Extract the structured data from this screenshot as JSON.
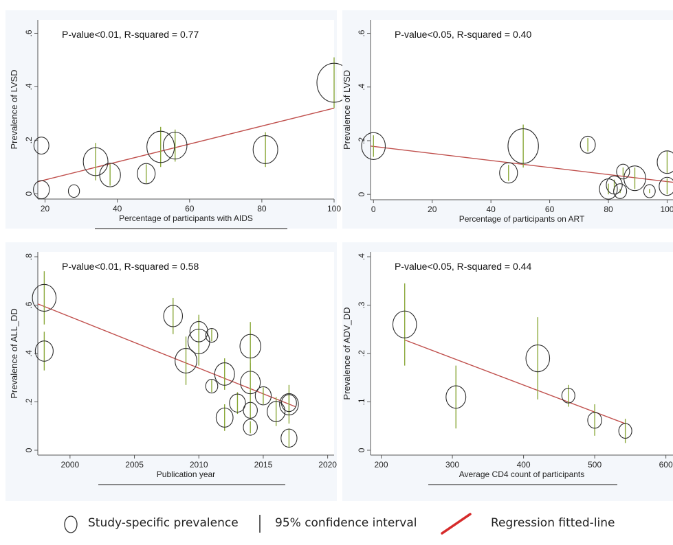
{
  "colors": {
    "background": "#ffffff",
    "panel_bg": "#f4f7fb",
    "axis": "#555555",
    "marker": "#2b2b2b",
    "ci": "#8aa83a",
    "fit": "#c0504d",
    "legend_fit": "#d62b2b"
  },
  "legend": {
    "items": [
      {
        "label": "Study-specific prevalence",
        "icon": "circle-marker-icon"
      },
      {
        "label": "95% confidence interval",
        "icon": "vertical-bar-icon"
      },
      {
        "label": "Regression fitted-line",
        "icon": "red-line-icon"
      }
    ]
  },
  "chart_data": [
    {
      "type": "scatter",
      "annotation": "P-value<0.01, R-squared = 0.77",
      "xlabel": "Percentage of participants with AIDS",
      "ylabel": "Prevalence of LVSD",
      "xlim": [
        18,
        100
      ],
      "ylim": [
        -0.02,
        0.65
      ],
      "xticks": [
        20,
        40,
        60,
        80,
        100
      ],
      "xtick_labels": [
        "20",
        "40",
        "60",
        "80",
        "100"
      ],
      "yticks": [
        0,
        0.2,
        0.4,
        0.6
      ],
      "ytick_labels": [
        "0",
        ".2",
        ".4",
        ".6"
      ],
      "points": [
        {
          "x": 19,
          "y": 0.18,
          "lo": 0.18,
          "hi": 0.18,
          "size": 0.4
        },
        {
          "x": 19,
          "y": 0.015,
          "lo": 0.015,
          "hi": 0.015,
          "size": 0.45
        },
        {
          "x": 28,
          "y": 0.01,
          "lo": 0.01,
          "hi": 0.01,
          "size": 0.2
        },
        {
          "x": 34,
          "y": 0.12,
          "lo": 0.05,
          "hi": 0.19,
          "size": 0.9
        },
        {
          "x": 38,
          "y": 0.07,
          "lo": 0.03,
          "hi": 0.11,
          "size": 0.7
        },
        {
          "x": 48,
          "y": 0.075,
          "lo": 0.04,
          "hi": 0.11,
          "size": 0.55
        },
        {
          "x": 52,
          "y": 0.175,
          "lo": 0.1,
          "hi": 0.25,
          "size": 1.05
        },
        {
          "x": 56,
          "y": 0.18,
          "lo": 0.12,
          "hi": 0.24,
          "size": 0.85
        },
        {
          "x": 81,
          "y": 0.165,
          "lo": 0.1,
          "hi": 0.23,
          "size": 0.9
        },
        {
          "x": 100,
          "y": 0.415,
          "lo": 0.32,
          "hi": 0.51,
          "size": 1.4
        }
      ],
      "fit": {
        "x": [
          18,
          100
        ],
        "y": [
          0.045,
          0.32
        ]
      }
    },
    {
      "type": "scatter",
      "annotation": "P-value<0.05, R-squared = 0.40",
      "xlabel": "Percentage of participants on ART",
      "ylabel": "Prevalence of LVSD",
      "xlim": [
        -1,
        102
      ],
      "ylim": [
        -0.02,
        0.65
      ],
      "xticks": [
        0,
        20,
        40,
        60,
        80,
        100
      ],
      "xtick_labels": [
        "0",
        "20",
        "40",
        "60",
        "80",
        "100"
      ],
      "yticks": [
        0,
        0.2,
        0.4,
        0.6
      ],
      "ytick_labels": [
        "0",
        ".2",
        ".4",
        ".6"
      ],
      "points": [
        {
          "x": 0,
          "y": 0.18,
          "lo": 0.14,
          "hi": 0.22,
          "size": 0.85
        },
        {
          "x": 46,
          "y": 0.08,
          "lo": 0.05,
          "hi": 0.11,
          "size": 0.55
        },
        {
          "x": 51,
          "y": 0.18,
          "lo": 0.1,
          "hi": 0.26,
          "size": 1.2
        },
        {
          "x": 73,
          "y": 0.185,
          "lo": 0.16,
          "hi": 0.21,
          "size": 0.4
        },
        {
          "x": 80,
          "y": 0.02,
          "lo": 0.0,
          "hi": 0.04,
          "size": 0.55
        },
        {
          "x": 82,
          "y": 0.035,
          "lo": 0.015,
          "hi": 0.055,
          "size": 0.45
        },
        {
          "x": 84,
          "y": 0.012,
          "lo": 0.005,
          "hi": 0.02,
          "size": 0.3
        },
        {
          "x": 85,
          "y": 0.085,
          "lo": 0.07,
          "hi": 0.1,
          "size": 0.3
        },
        {
          "x": 89,
          "y": 0.06,
          "lo": 0.02,
          "hi": 0.1,
          "size": 0.75
        },
        {
          "x": 94,
          "y": 0.012,
          "lo": 0.005,
          "hi": 0.02,
          "size": 0.22
        },
        {
          "x": 100,
          "y": 0.03,
          "lo": 0.0,
          "hi": 0.06,
          "size": 0.45
        },
        {
          "x": 100,
          "y": 0.12,
          "lo": 0.08,
          "hi": 0.16,
          "size": 0.65
        }
      ],
      "fit": {
        "x": [
          -1,
          102
        ],
        "y": [
          0.18,
          0.045
        ]
      }
    },
    {
      "type": "scatter",
      "annotation": "P-value<0.01, R-squared = 0.58",
      "xlabel": "Publication year",
      "ylabel": "Prevalence of ALL_DD",
      "xlim": [
        1997.5,
        2020.5
      ],
      "ylim": [
        -0.02,
        0.82
      ],
      "xticks": [
        2000,
        2005,
        2010,
        2015,
        2020
      ],
      "xtick_labels": [
        "2000",
        "2005",
        "2010",
        "2015",
        "2020"
      ],
      "yticks": [
        0,
        0.2,
        0.4,
        0.6,
        0.8
      ],
      "ytick_labels": [
        "0",
        ".2",
        ".4",
        ".6",
        ".8"
      ],
      "points": [
        {
          "x": 1998,
          "y": 0.63,
          "lo": 0.52,
          "hi": 0.74,
          "size": 0.85
        },
        {
          "x": 1998,
          "y": 0.41,
          "lo": 0.33,
          "hi": 0.49,
          "size": 0.55
        },
        {
          "x": 2008,
          "y": 0.555,
          "lo": 0.48,
          "hi": 0.63,
          "size": 0.6
        },
        {
          "x": 2009,
          "y": 0.37,
          "lo": 0.27,
          "hi": 0.47,
          "size": 0.75
        },
        {
          "x": 2010,
          "y": 0.49,
          "lo": 0.43,
          "hi": 0.56,
          "size": 0.55
        },
        {
          "x": 2010,
          "y": 0.45,
          "lo": 0.35,
          "hi": 0.55,
          "size": 0.75
        },
        {
          "x": 2011,
          "y": 0.475,
          "lo": 0.45,
          "hi": 0.5,
          "size": 0.25
        },
        {
          "x": 2011,
          "y": 0.265,
          "lo": 0.24,
          "hi": 0.29,
          "size": 0.25
        },
        {
          "x": 2012,
          "y": 0.315,
          "lo": 0.25,
          "hi": 0.38,
          "size": 0.65
        },
        {
          "x": 2012,
          "y": 0.135,
          "lo": 0.08,
          "hi": 0.19,
          "size": 0.5
        },
        {
          "x": 2013,
          "y": 0.195,
          "lo": 0.15,
          "hi": 0.24,
          "size": 0.45
        },
        {
          "x": 2014,
          "y": 0.43,
          "lo": 0.33,
          "hi": 0.53,
          "size": 0.7
        },
        {
          "x": 2014,
          "y": 0.28,
          "lo": 0.2,
          "hi": 0.36,
          "size": 0.65
        },
        {
          "x": 2014,
          "y": 0.165,
          "lo": 0.13,
          "hi": 0.2,
          "size": 0.35
        },
        {
          "x": 2014,
          "y": 0.095,
          "lo": 0.07,
          "hi": 0.12,
          "size": 0.35
        },
        {
          "x": 2015,
          "y": 0.225,
          "lo": 0.19,
          "hi": 0.26,
          "size": 0.45
        },
        {
          "x": 2016,
          "y": 0.16,
          "lo": 0.1,
          "hi": 0.22,
          "size": 0.55
        },
        {
          "x": 2017,
          "y": 0.19,
          "lo": 0.11,
          "hi": 0.27,
          "size": 0.6
        },
        {
          "x": 2017,
          "y": 0.195,
          "lo": 0.16,
          "hi": 0.23,
          "size": 0.4
        },
        {
          "x": 2017,
          "y": 0.05,
          "lo": 0.01,
          "hi": 0.09,
          "size": 0.45
        }
      ],
      "fit": {
        "x": [
          1997.5,
          2017.5
        ],
        "y": [
          0.605,
          0.18
        ]
      }
    },
    {
      "type": "scatter",
      "annotation": "P-value<0.05, R-squared = 0.44",
      "xlabel": "Average CD4 count of participants",
      "ylabel": "Prevalence of ADV_DD",
      "xlim": [
        185,
        610
      ],
      "ylim": [
        -0.01,
        0.41
      ],
      "xticks": [
        200,
        300,
        400,
        500,
        600
      ],
      "xtick_labels": [
        "200",
        "300",
        "400",
        "500",
        "600"
      ],
      "yticks": [
        0,
        0.1,
        0.2,
        0.3,
        0.4
      ],
      "ytick_labels": [
        "0",
        ".1",
        ".2",
        ".3",
        ".4"
      ],
      "points": [
        {
          "x": 233,
          "y": 0.26,
          "lo": 0.175,
          "hi": 0.345,
          "size": 0.85
        },
        {
          "x": 305,
          "y": 0.11,
          "lo": 0.045,
          "hi": 0.175,
          "size": 0.65
        },
        {
          "x": 420,
          "y": 0.19,
          "lo": 0.105,
          "hi": 0.275,
          "size": 0.85
        },
        {
          "x": 463,
          "y": 0.113,
          "lo": 0.09,
          "hi": 0.135,
          "size": 0.3
        },
        {
          "x": 500,
          "y": 0.062,
          "lo": 0.03,
          "hi": 0.095,
          "size": 0.35
        },
        {
          "x": 543,
          "y": 0.04,
          "lo": 0.015,
          "hi": 0.065,
          "size": 0.3
        }
      ],
      "fit": {
        "x": [
          233,
          543
        ],
        "y": [
          0.228,
          0.055
        ]
      }
    }
  ]
}
